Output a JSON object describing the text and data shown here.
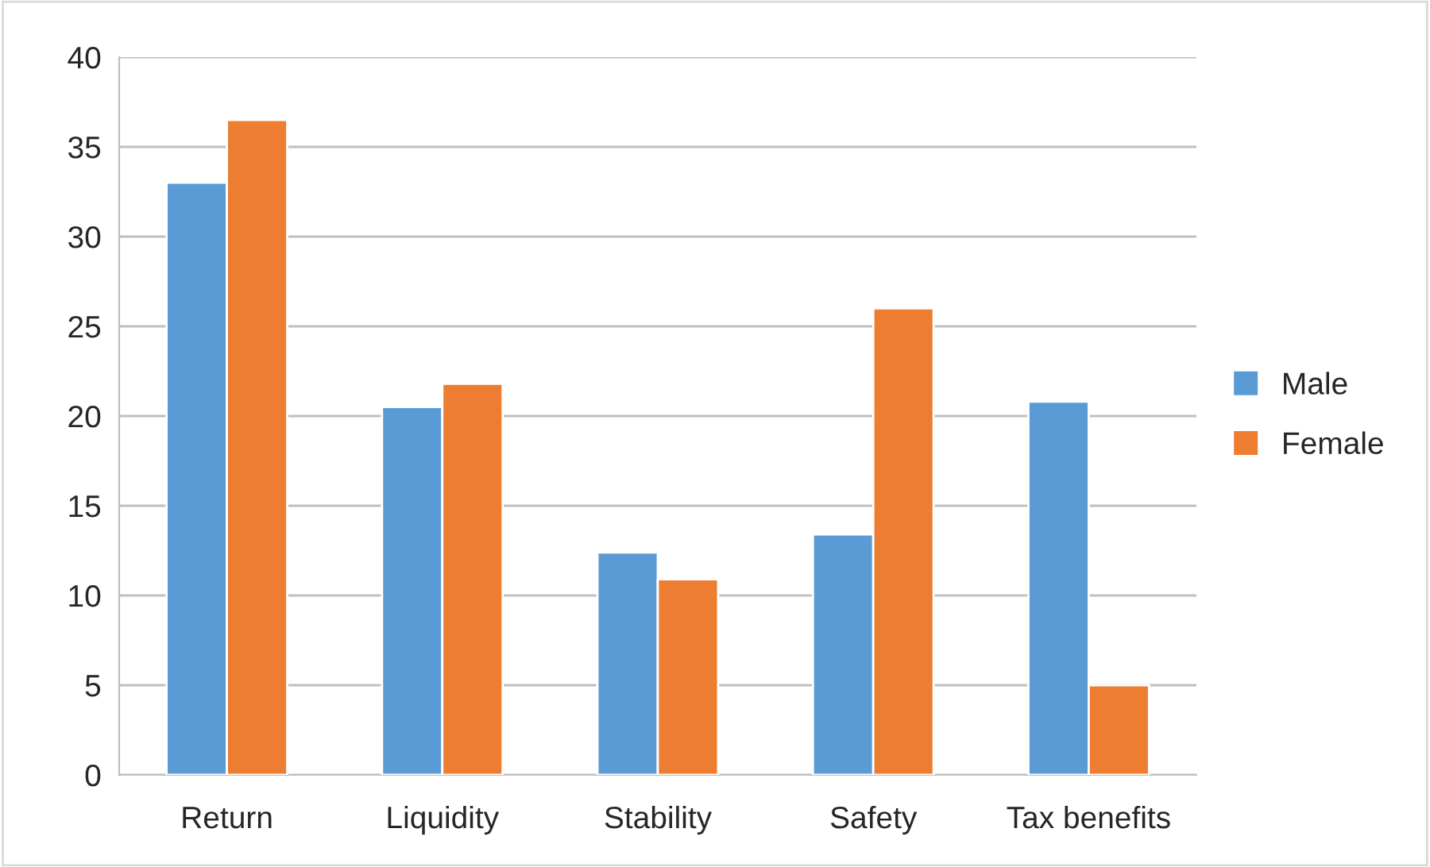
{
  "chart_data": {
    "type": "bar",
    "categories": [
      "Return",
      "Liquidity",
      "Stability",
      "Safety",
      "Tax benefits"
    ],
    "series": [
      {
        "name": "Male",
        "color": "#5b9bd5",
        "values": [
          33.0,
          20.5,
          12.4,
          13.4,
          20.8
        ]
      },
      {
        "name": "Female",
        "color": "#ed7d31",
        "values": [
          36.5,
          21.8,
          10.9,
          26.0,
          5.0
        ]
      }
    ],
    "ylim": [
      0,
      40
    ],
    "yticks": [
      0,
      5,
      10,
      15,
      20,
      25,
      30,
      35,
      40
    ],
    "grid": "y",
    "legend": "right"
  }
}
